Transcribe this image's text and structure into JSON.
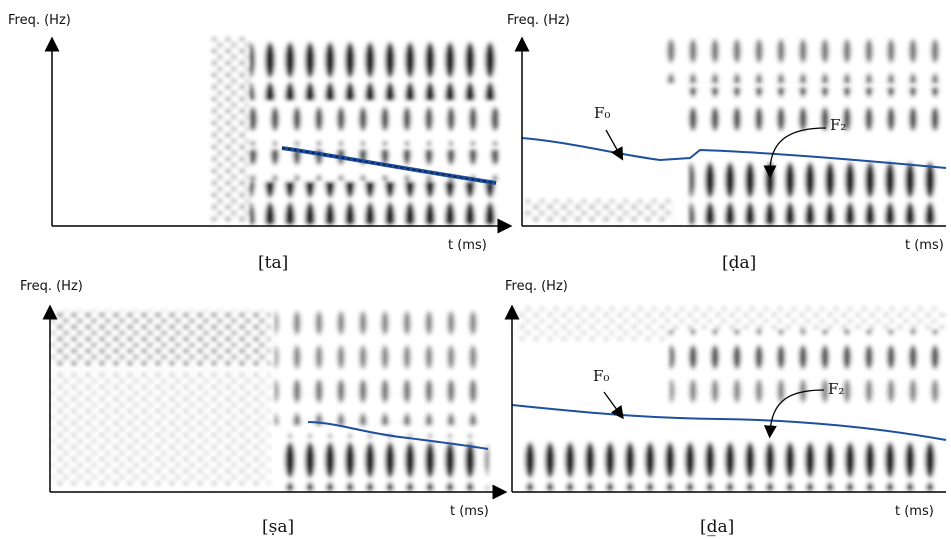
{
  "panels": [
    {
      "y_label": "Freq. (Hz)",
      "x_label": "t (ms)",
      "caption": "[ta]"
    },
    {
      "y_label": "Freq. (Hz)",
      "x_label": "t (ms)",
      "caption": "[ḍa]",
      "annotations": [
        "F₀",
        "F₂"
      ]
    },
    {
      "y_label": "Freq. (Hz)",
      "x_label": "t (ms)",
      "caption": "[ṣa]"
    },
    {
      "y_label": "Freq. (Hz)",
      "x_label": "t (ms)",
      "caption": "[d̲a]",
      "annotations": [
        "F₀",
        "F₂"
      ]
    }
  ]
}
